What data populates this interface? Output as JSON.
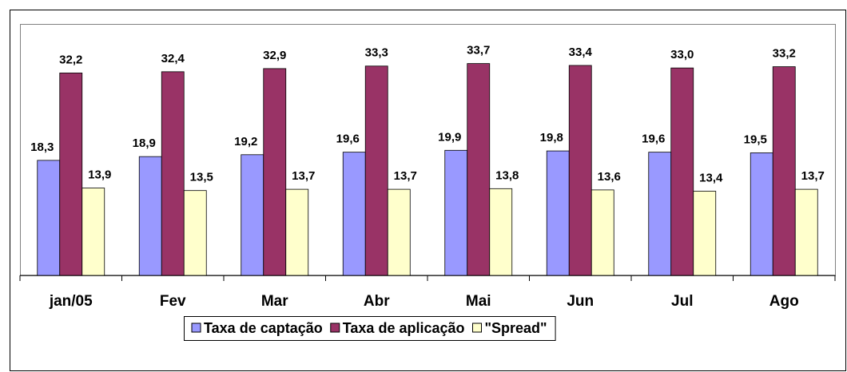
{
  "chart_data": {
    "type": "bar",
    "categories": [
      "jan/05",
      "Fev",
      "Mar",
      "Abr",
      "Mai",
      "Jun",
      "Jul",
      "Ago"
    ],
    "series": [
      {
        "name": "Taxa de captação",
        "color": "#9999ff",
        "values": [
          18.3,
          18.9,
          19.2,
          19.6,
          19.9,
          19.8,
          19.6,
          19.5
        ],
        "value_labels": [
          "18,3",
          "18,9",
          "19,2",
          "19,6",
          "19,9",
          "19,8",
          "19,6",
          "19,5"
        ]
      },
      {
        "name": "Taxa de aplicação",
        "color": "#993366",
        "values": [
          32.2,
          32.4,
          32.9,
          33.3,
          33.7,
          33.4,
          33.0,
          33.2
        ],
        "value_labels": [
          "32,2",
          "32,4",
          "32,9",
          "33,3",
          "33,7",
          "33,4",
          "33,0",
          "33,2"
        ]
      },
      {
        "name": "\"Spread\"",
        "color": "#ffffcc",
        "values": [
          13.9,
          13.5,
          13.7,
          13.7,
          13.8,
          13.6,
          13.4,
          13.7
        ],
        "value_labels": [
          "13,9",
          "13,5",
          "13,7",
          "13,7",
          "13,8",
          "13,6",
          "13,4",
          "13,7"
        ]
      }
    ],
    "ylim": [
      0,
      40
    ]
  }
}
